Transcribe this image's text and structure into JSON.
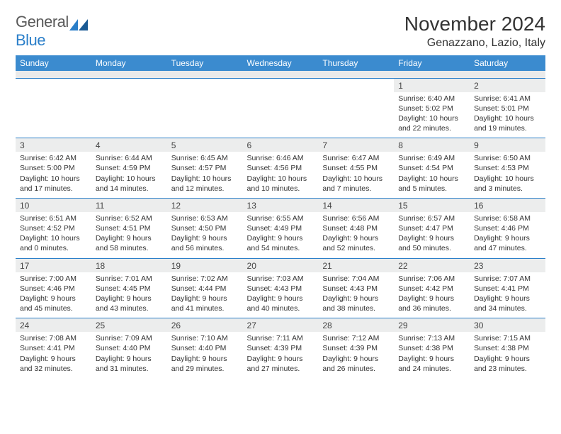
{
  "logo": {
    "text_a": "General",
    "text_b": "Blue"
  },
  "title": "November 2024",
  "location": "Genazzano, Lazio, Italy",
  "colors": {
    "header_bg": "#3b8bcf",
    "header_text": "#ffffff",
    "cell_border": "#2b7fc9",
    "daynum_bg": "#eceded",
    "sep_bg": "#eaeaea",
    "body_text": "#333333",
    "logo_gray": "#5a5a5a",
    "logo_blue": "#2b7fc9"
  },
  "day_names": [
    "Sunday",
    "Monday",
    "Tuesday",
    "Wednesday",
    "Thursday",
    "Friday",
    "Saturday"
  ],
  "weeks": [
    [
      null,
      null,
      null,
      null,
      null,
      {
        "n": "1",
        "sr": "Sunrise: 6:40 AM",
        "ss": "Sunset: 5:02 PM",
        "dl1": "Daylight: 10 hours",
        "dl2": "and 22 minutes."
      },
      {
        "n": "2",
        "sr": "Sunrise: 6:41 AM",
        "ss": "Sunset: 5:01 PM",
        "dl1": "Daylight: 10 hours",
        "dl2": "and 19 minutes."
      }
    ],
    [
      {
        "n": "3",
        "sr": "Sunrise: 6:42 AM",
        "ss": "Sunset: 5:00 PM",
        "dl1": "Daylight: 10 hours",
        "dl2": "and 17 minutes."
      },
      {
        "n": "4",
        "sr": "Sunrise: 6:44 AM",
        "ss": "Sunset: 4:59 PM",
        "dl1": "Daylight: 10 hours",
        "dl2": "and 14 minutes."
      },
      {
        "n": "5",
        "sr": "Sunrise: 6:45 AM",
        "ss": "Sunset: 4:57 PM",
        "dl1": "Daylight: 10 hours",
        "dl2": "and 12 minutes."
      },
      {
        "n": "6",
        "sr": "Sunrise: 6:46 AM",
        "ss": "Sunset: 4:56 PM",
        "dl1": "Daylight: 10 hours",
        "dl2": "and 10 minutes."
      },
      {
        "n": "7",
        "sr": "Sunrise: 6:47 AM",
        "ss": "Sunset: 4:55 PM",
        "dl1": "Daylight: 10 hours",
        "dl2": "and 7 minutes."
      },
      {
        "n": "8",
        "sr": "Sunrise: 6:49 AM",
        "ss": "Sunset: 4:54 PM",
        "dl1": "Daylight: 10 hours",
        "dl2": "and 5 minutes."
      },
      {
        "n": "9",
        "sr": "Sunrise: 6:50 AM",
        "ss": "Sunset: 4:53 PM",
        "dl1": "Daylight: 10 hours",
        "dl2": "and 3 minutes."
      }
    ],
    [
      {
        "n": "10",
        "sr": "Sunrise: 6:51 AM",
        "ss": "Sunset: 4:52 PM",
        "dl1": "Daylight: 10 hours",
        "dl2": "and 0 minutes."
      },
      {
        "n": "11",
        "sr": "Sunrise: 6:52 AM",
        "ss": "Sunset: 4:51 PM",
        "dl1": "Daylight: 9 hours",
        "dl2": "and 58 minutes."
      },
      {
        "n": "12",
        "sr": "Sunrise: 6:53 AM",
        "ss": "Sunset: 4:50 PM",
        "dl1": "Daylight: 9 hours",
        "dl2": "and 56 minutes."
      },
      {
        "n": "13",
        "sr": "Sunrise: 6:55 AM",
        "ss": "Sunset: 4:49 PM",
        "dl1": "Daylight: 9 hours",
        "dl2": "and 54 minutes."
      },
      {
        "n": "14",
        "sr": "Sunrise: 6:56 AM",
        "ss": "Sunset: 4:48 PM",
        "dl1": "Daylight: 9 hours",
        "dl2": "and 52 minutes."
      },
      {
        "n": "15",
        "sr": "Sunrise: 6:57 AM",
        "ss": "Sunset: 4:47 PM",
        "dl1": "Daylight: 9 hours",
        "dl2": "and 50 minutes."
      },
      {
        "n": "16",
        "sr": "Sunrise: 6:58 AM",
        "ss": "Sunset: 4:46 PM",
        "dl1": "Daylight: 9 hours",
        "dl2": "and 47 minutes."
      }
    ],
    [
      {
        "n": "17",
        "sr": "Sunrise: 7:00 AM",
        "ss": "Sunset: 4:46 PM",
        "dl1": "Daylight: 9 hours",
        "dl2": "and 45 minutes."
      },
      {
        "n": "18",
        "sr": "Sunrise: 7:01 AM",
        "ss": "Sunset: 4:45 PM",
        "dl1": "Daylight: 9 hours",
        "dl2": "and 43 minutes."
      },
      {
        "n": "19",
        "sr": "Sunrise: 7:02 AM",
        "ss": "Sunset: 4:44 PM",
        "dl1": "Daylight: 9 hours",
        "dl2": "and 41 minutes."
      },
      {
        "n": "20",
        "sr": "Sunrise: 7:03 AM",
        "ss": "Sunset: 4:43 PM",
        "dl1": "Daylight: 9 hours",
        "dl2": "and 40 minutes."
      },
      {
        "n": "21",
        "sr": "Sunrise: 7:04 AM",
        "ss": "Sunset: 4:43 PM",
        "dl1": "Daylight: 9 hours",
        "dl2": "and 38 minutes."
      },
      {
        "n": "22",
        "sr": "Sunrise: 7:06 AM",
        "ss": "Sunset: 4:42 PM",
        "dl1": "Daylight: 9 hours",
        "dl2": "and 36 minutes."
      },
      {
        "n": "23",
        "sr": "Sunrise: 7:07 AM",
        "ss": "Sunset: 4:41 PM",
        "dl1": "Daylight: 9 hours",
        "dl2": "and 34 minutes."
      }
    ],
    [
      {
        "n": "24",
        "sr": "Sunrise: 7:08 AM",
        "ss": "Sunset: 4:41 PM",
        "dl1": "Daylight: 9 hours",
        "dl2": "and 32 minutes."
      },
      {
        "n": "25",
        "sr": "Sunrise: 7:09 AM",
        "ss": "Sunset: 4:40 PM",
        "dl1": "Daylight: 9 hours",
        "dl2": "and 31 minutes."
      },
      {
        "n": "26",
        "sr": "Sunrise: 7:10 AM",
        "ss": "Sunset: 4:40 PM",
        "dl1": "Daylight: 9 hours",
        "dl2": "and 29 minutes."
      },
      {
        "n": "27",
        "sr": "Sunrise: 7:11 AM",
        "ss": "Sunset: 4:39 PM",
        "dl1": "Daylight: 9 hours",
        "dl2": "and 27 minutes."
      },
      {
        "n": "28",
        "sr": "Sunrise: 7:12 AM",
        "ss": "Sunset: 4:39 PM",
        "dl1": "Daylight: 9 hours",
        "dl2": "and 26 minutes."
      },
      {
        "n": "29",
        "sr": "Sunrise: 7:13 AM",
        "ss": "Sunset: 4:38 PM",
        "dl1": "Daylight: 9 hours",
        "dl2": "and 24 minutes."
      },
      {
        "n": "30",
        "sr": "Sunrise: 7:15 AM",
        "ss": "Sunset: 4:38 PM",
        "dl1": "Daylight: 9 hours",
        "dl2": "and 23 minutes."
      }
    ]
  ]
}
